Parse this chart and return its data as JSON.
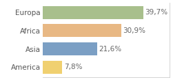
{
  "categories": [
    "America",
    "Asia",
    "Africa",
    "Europa"
  ],
  "values": [
    7.8,
    21.6,
    30.9,
    39.7
  ],
  "labels": [
    "7,8%",
    "21,6%",
    "30,9%",
    "39,7%"
  ],
  "bar_colors": [
    "#f0d070",
    "#7b9fc4",
    "#e8b884",
    "#a8bf8c"
  ],
  "background_color": "#ffffff",
  "xlim": [
    0,
    50
  ],
  "bar_height": 0.72,
  "label_fontsize": 7.5,
  "tick_fontsize": 7.5,
  "label_color": "#666666",
  "tick_color": "#555555",
  "border_color": "#cccccc"
}
